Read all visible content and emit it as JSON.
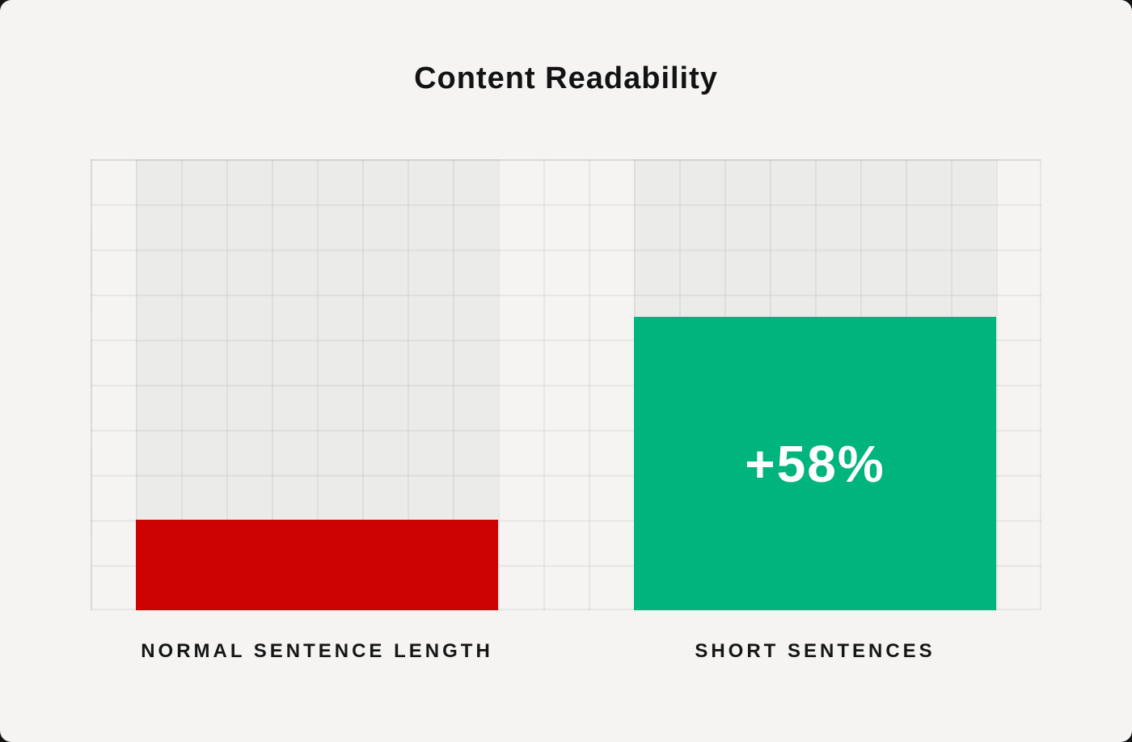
{
  "title": "Content Readability",
  "colors": {
    "background": "#f5f4f3",
    "shaded_column": "#ebebea",
    "gridline": "rgba(110,110,104,0.10)",
    "bar_red": "#cc0302",
    "bar_green": "#00b47d",
    "label_text": "#161616",
    "bar_value_text": "#ffffff"
  },
  "chart_data": {
    "type": "bar",
    "title": "Content Readability",
    "categories": [
      "NORMAL SENTENCE LENGTH",
      "SHORT SENTENCES"
    ],
    "series": [
      {
        "name": "Readability",
        "values": [
          2,
          6.5
        ]
      }
    ],
    "values_unit": "grid rows (y-axis unlabeled, 10 rows total)",
    "ylim": [
      0,
      10
    ],
    "annotations": [
      {
        "category": "SHORT SENTENCES",
        "label": "+58%"
      }
    ],
    "bar_colors": [
      "#cc0302",
      "#00b47d"
    ],
    "grid": {
      "rows": 10,
      "columns": 21,
      "bar_span_columns": 8,
      "gridlines_visible": true,
      "shaded_ghost_columns_above_bars": true
    },
    "xlabel": "",
    "ylabel": "",
    "legend": "none"
  }
}
